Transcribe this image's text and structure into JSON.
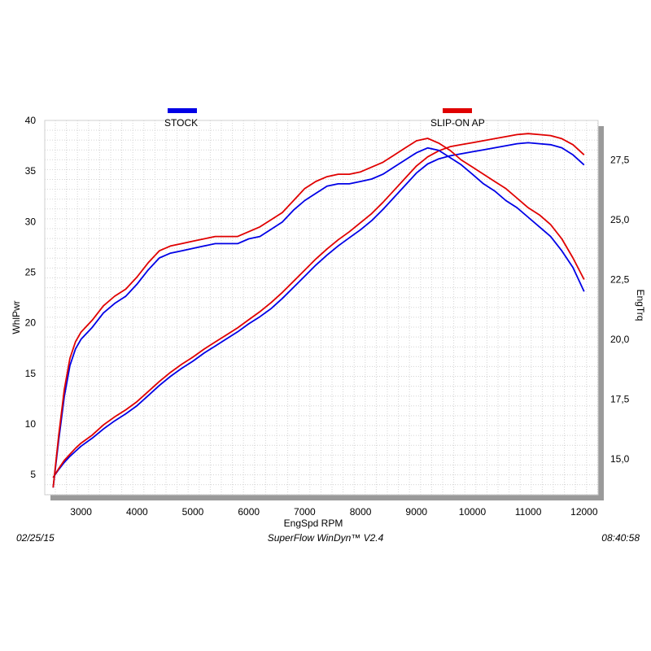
{
  "chart_data": {
    "type": "line",
    "xlabel": "EngSpd  RPM",
    "ylabel_left": "WhlPwr",
    "ylabel_right": "EngTrq",
    "xlim": [
      2350,
      12250
    ],
    "ylim_left": [
      3,
      40
    ],
    "ylim_right": [
      13.5,
      29.15
    ],
    "x_ticks": [
      3000,
      4000,
      5000,
      6000,
      7000,
      8000,
      9000,
      10000,
      11000,
      12000
    ],
    "y_left_ticks": [
      5,
      10,
      15,
      20,
      25,
      30,
      35,
      40
    ],
    "y_right_ticks": [
      15,
      17.5,
      20,
      22.5,
      25,
      27.5
    ],
    "y_right_tick_labels": [
      "15,0",
      "17,5",
      "20,0",
      "22,5",
      "25,0",
      "27,5"
    ],
    "grid": true,
    "legend": [
      {
        "name": "STOCK",
        "color": "#0000e6"
      },
      {
        "name": "SLIP-ON AP",
        "color": "#e00000"
      }
    ],
    "series": [
      {
        "name": "STOCK",
        "metric": "WhlPwr",
        "axis": "left",
        "color": "#0000e6",
        "x": [
          2500,
          2600,
          2700,
          2800,
          2900,
          3000,
          3200,
          3400,
          3600,
          3800,
          4000,
          4200,
          4400,
          4600,
          4800,
          5000,
          5200,
          5400,
          5600,
          5800,
          6000,
          6200,
          6400,
          6600,
          6800,
          7000,
          7200,
          7400,
          7600,
          7800,
          8000,
          8200,
          8400,
          8600,
          8800,
          9000,
          9200,
          9400,
          9600,
          9800,
          10000,
          10200,
          10400,
          10600,
          10800,
          11000,
          11200,
          11400,
          11600,
          11800,
          12000
        ],
        "values": [
          4.7,
          5.5,
          6.2,
          6.8,
          7.3,
          7.8,
          8.6,
          9.5,
          10.3,
          11.0,
          11.8,
          12.8,
          13.8,
          14.7,
          15.5,
          16.2,
          17.0,
          17.7,
          18.4,
          19.1,
          19.9,
          20.6,
          21.4,
          22.4,
          23.5,
          24.6,
          25.7,
          26.7,
          27.6,
          28.4,
          29.2,
          30.1,
          31.2,
          32.4,
          33.6,
          34.8,
          35.7,
          36.2,
          36.5,
          36.7,
          36.9,
          37.1,
          37.3,
          37.5,
          37.7,
          37.8,
          37.7,
          37.6,
          37.3,
          36.6,
          35.6
        ]
      },
      {
        "name": "SLIP-ON AP",
        "metric": "WhlPwr",
        "axis": "left",
        "color": "#e00000",
        "x": [
          2500,
          2600,
          2700,
          2800,
          2900,
          3000,
          3200,
          3400,
          3600,
          3800,
          4000,
          4200,
          4400,
          4600,
          4800,
          5000,
          5200,
          5400,
          5600,
          5800,
          6000,
          6200,
          6400,
          6600,
          6800,
          7000,
          7200,
          7400,
          7600,
          7800,
          8000,
          8200,
          8400,
          8600,
          8800,
          9000,
          9200,
          9400,
          9600,
          9800,
          10000,
          10200,
          10400,
          10600,
          10800,
          11000,
          11200,
          11400,
          11600,
          11800,
          12000
        ],
        "values": [
          4.7,
          5.6,
          6.4,
          7.0,
          7.6,
          8.1,
          8.9,
          9.9,
          10.7,
          11.4,
          12.2,
          13.2,
          14.2,
          15.1,
          15.9,
          16.6,
          17.4,
          18.1,
          18.8,
          19.5,
          20.3,
          21.1,
          22.0,
          23.0,
          24.1,
          25.2,
          26.3,
          27.3,
          28.2,
          29.0,
          29.9,
          30.8,
          31.9,
          33.1,
          34.3,
          35.5,
          36.4,
          37.0,
          37.4,
          37.6,
          37.8,
          38.0,
          38.2,
          38.4,
          38.6,
          38.7,
          38.6,
          38.5,
          38.2,
          37.6,
          36.6
        ]
      },
      {
        "name": "STOCK",
        "metric": "EngTrq",
        "axis": "right",
        "color": "#0000e6",
        "x": [
          2500,
          2600,
          2700,
          2800,
          2900,
          3000,
          3200,
          3400,
          3600,
          3800,
          4000,
          4200,
          4400,
          4600,
          4800,
          5000,
          5200,
          5400,
          5600,
          5800,
          6000,
          6200,
          6400,
          6600,
          6800,
          7000,
          7200,
          7400,
          7600,
          7800,
          8000,
          8200,
          8400,
          8600,
          8800,
          9000,
          9200,
          9400,
          9600,
          9800,
          10000,
          10200,
          10400,
          10600,
          10800,
          11000,
          11200,
          11400,
          11600,
          11800,
          12000
        ],
        "values": [
          13.8,
          15.8,
          17.6,
          18.9,
          19.6,
          20.0,
          20.5,
          21.1,
          21.5,
          21.8,
          22.3,
          22.9,
          23.4,
          23.6,
          23.7,
          23.8,
          23.9,
          24.0,
          24.0,
          24.0,
          24.2,
          24.3,
          24.6,
          24.9,
          25.4,
          25.8,
          26.1,
          26.4,
          26.5,
          26.5,
          26.6,
          26.7,
          26.9,
          27.2,
          27.5,
          27.8,
          28.0,
          27.9,
          27.6,
          27.3,
          26.9,
          26.5,
          26.2,
          25.8,
          25.5,
          25.1,
          24.7,
          24.3,
          23.7,
          23.0,
          22.0
        ]
      },
      {
        "name": "SLIP-ON AP",
        "metric": "EngTrq",
        "axis": "right",
        "color": "#e00000",
        "x": [
          2500,
          2600,
          2700,
          2800,
          2900,
          3000,
          3200,
          3400,
          3600,
          3800,
          4000,
          4200,
          4400,
          4600,
          4800,
          5000,
          5200,
          5400,
          5600,
          5800,
          6000,
          6200,
          6400,
          6600,
          6800,
          7000,
          7200,
          7400,
          7600,
          7800,
          8000,
          8200,
          8400,
          8600,
          8800,
          9000,
          9200,
          9400,
          9600,
          9800,
          10000,
          10200,
          10400,
          10600,
          10800,
          11000,
          11200,
          11400,
          11600,
          11800,
          12000
        ],
        "values": [
          13.8,
          16.0,
          17.9,
          19.2,
          19.9,
          20.3,
          20.8,
          21.4,
          21.8,
          22.1,
          22.6,
          23.2,
          23.7,
          23.9,
          24.0,
          24.1,
          24.2,
          24.3,
          24.3,
          24.3,
          24.5,
          24.7,
          25.0,
          25.3,
          25.8,
          26.3,
          26.6,
          26.8,
          26.9,
          26.9,
          27.0,
          27.2,
          27.4,
          27.7,
          28.0,
          28.3,
          28.4,
          28.2,
          27.9,
          27.5,
          27.2,
          26.9,
          26.6,
          26.3,
          25.9,
          25.5,
          25.2,
          24.8,
          24.2,
          23.4,
          22.5
        ]
      }
    ]
  },
  "footer": {
    "date": "02/25/15",
    "software": "SuperFlow WinDyn™  V2.4",
    "time": "08:40:58"
  }
}
